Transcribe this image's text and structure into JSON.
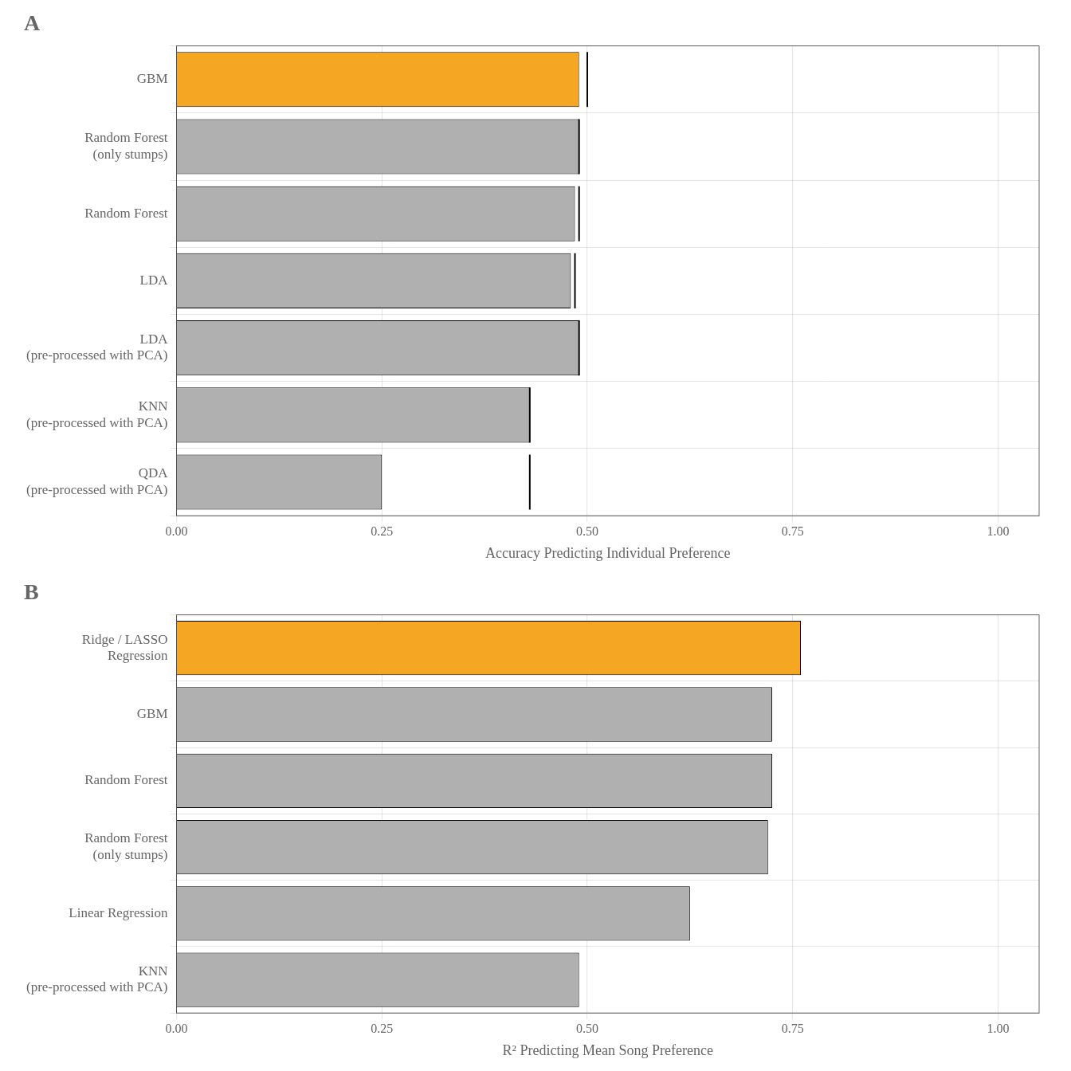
{
  "chart_data": [
    {
      "type": "bar",
      "orientation": "horizontal",
      "title": "A",
      "xlabel": "Accuracy Predicting Individual Preference",
      "categories": [
        "GBM",
        "Random Forest\n(only stumps)",
        "Random Forest",
        "LDA",
        "LDA\n(pre-processed with PCA)",
        "KNN\n(pre-processed with PCA)",
        "QDA\n(pre-processed with PCA)"
      ],
      "values": [
        0.49,
        0.49,
        0.485,
        0.48,
        0.49,
        0.43,
        0.25
      ],
      "line_x": [
        0.5,
        0.49,
        0.49,
        0.485,
        0.49,
        0.43,
        0.43
      ],
      "colors": [
        "#F5A623",
        "#B0B0B0",
        "#B0B0B0",
        "#B0B0B0",
        "#B0B0B0",
        "#B0B0B0",
        "#B0B0B0"
      ],
      "xlim": [
        0.0,
        1.05
      ],
      "xticks": [
        {
          "value": 0.0,
          "label": "0.00"
        },
        0.25,
        {
          "value": 0.5,
          "label": "0.50"
        },
        0.75,
        {
          "value": 1.0,
          "label": "1.00"
        }
      ],
      "grid": true
    },
    {
      "type": "bar",
      "orientation": "horizontal",
      "title": "B",
      "xlabel": "R² Predicting Mean Song Preference",
      "categories": [
        "Ridge / LASSO\nRegression",
        "GBM",
        "Random Forest",
        "Random Forest\n(only stumps)",
        "Linear Regression",
        "KNN\n(pre-processed with PCA)"
      ],
      "values": [
        0.76,
        0.725,
        0.725,
        0.72,
        0.625,
        0.49
      ],
      "colors": [
        "#F5A623",
        "#B0B0B0",
        "#B0B0B0",
        "#B0B0B0",
        "#B0B0B0",
        "#B0B0B0"
      ],
      "xlim": [
        0.0,
        1.05
      ],
      "xticks": [
        {
          "value": 0.0,
          "label": "0.00"
        },
        0.25,
        {
          "value": 0.5,
          "label": "0.50"
        },
        0.75,
        {
          "value": 1.0,
          "label": "1.00"
        }
      ],
      "grid": true
    }
  ]
}
